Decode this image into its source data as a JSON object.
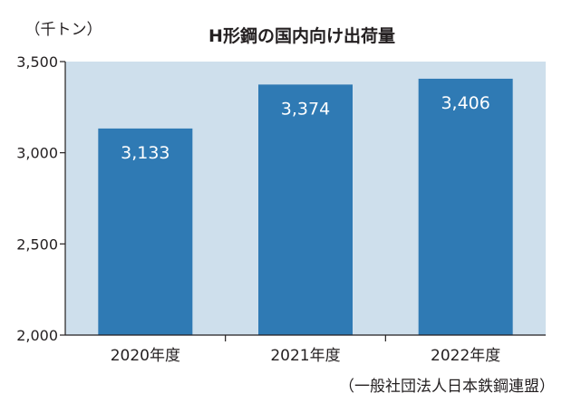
{
  "chart_data": {
    "type": "bar",
    "title": "H形鋼の国内向け出荷量",
    "unit_label": "（千トン）",
    "source": "（一般社団法人日本鉄鋼連盟）",
    "categories": [
      "2020年度",
      "2021年度",
      "2022年度"
    ],
    "values": [
      3133,
      3374,
      3406
    ],
    "value_labels": [
      "3,133",
      "3,374",
      "3,406"
    ],
    "ylim": [
      2000,
      3500
    ],
    "yticks": [
      2000,
      2500,
      3000,
      3500
    ],
    "ytick_labels": [
      "2,000",
      "2,500",
      "3,000",
      "3,500"
    ],
    "grid": false,
    "colors": {
      "plot_background": "#cedfec",
      "bar": "#2f7ab4",
      "bar_label": "#ffffff"
    }
  }
}
